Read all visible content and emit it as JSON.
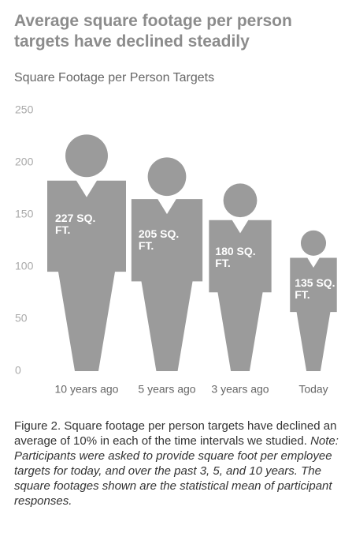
{
  "chart_data": {
    "type": "pictograph",
    "title": "Average square footage per person targets have declined steadily",
    "subtitle": "Square Footage per Person Targets",
    "categories": [
      "10 years ago",
      "5 years ago",
      "3 years ago",
      "Today"
    ],
    "values": [
      227,
      205,
      180,
      135
    ],
    "value_labels": [
      "227 SQ. FT.",
      "205 SQ. FT.",
      "180 SQ. FT.",
      "135 SQ. FT."
    ],
    "color": "#9b9b9b",
    "ylim": [
      0,
      250
    ],
    "yticks": [
      0,
      50,
      100,
      150,
      200,
      250
    ],
    "caption": {
      "text": "Figure 2. Square footage per person targets have declined an average of 10% in each of the time intervals we studied.",
      "note": "Note: Participants were asked to provide square foot per employee targets for today, and over the past 3, 5, and 10 years. The square footages shown are the statistical mean of participant responses."
    }
  }
}
